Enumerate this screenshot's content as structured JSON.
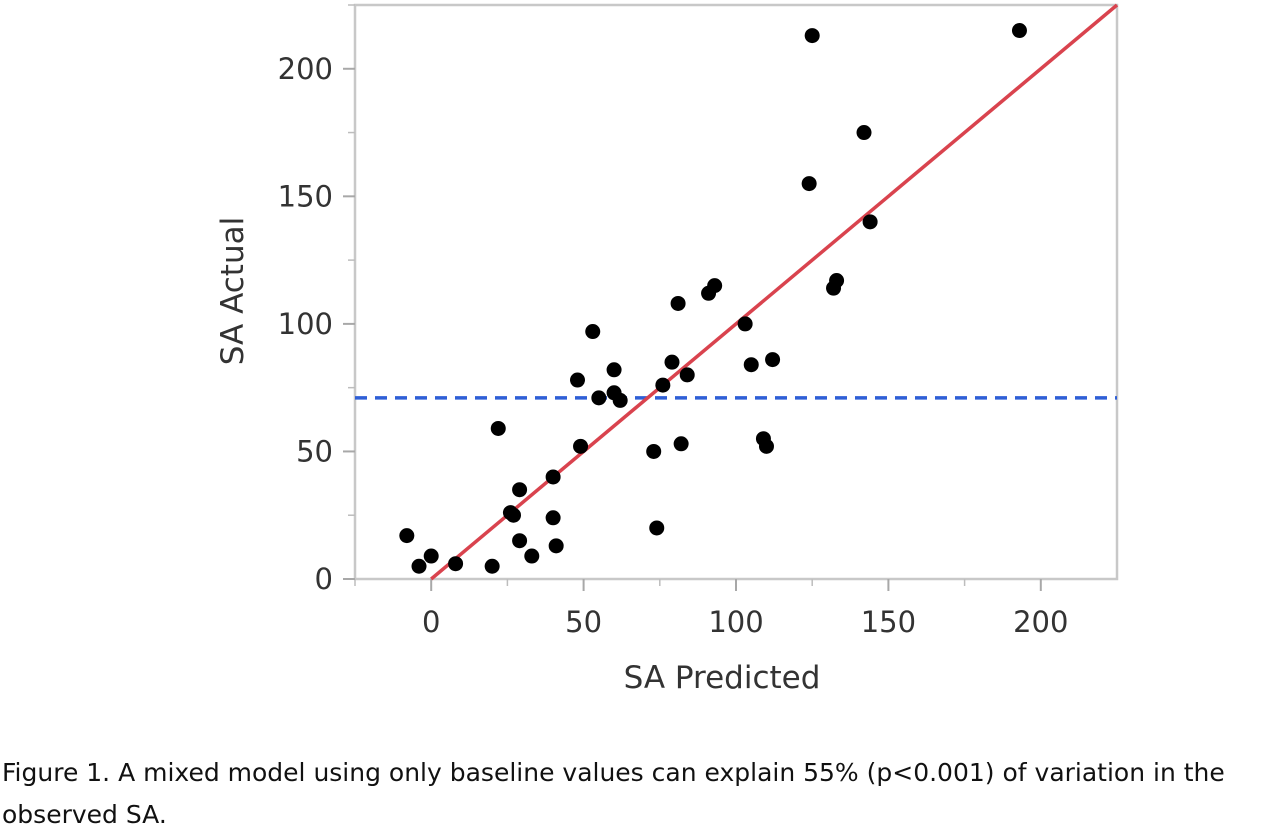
{
  "chart_data": {
    "type": "scatter",
    "title": "",
    "xlabel": "SA Predicted",
    "ylabel": "SA Actual",
    "xlim": [
      -25,
      225
    ],
    "ylim": [
      0,
      225
    ],
    "xticks": [
      0,
      50,
      100,
      150,
      200
    ],
    "yticks": [
      0,
      50,
      100,
      150,
      200
    ],
    "grid": false,
    "point_color": "#000000",
    "fit_line": {
      "from": [
        0,
        0
      ],
      "to": [
        225,
        225
      ],
      "color": "#d9434e"
    },
    "reference_line": {
      "y": 71,
      "color": "#2f5fd6",
      "dash": true
    },
    "points": [
      {
        "x": -8,
        "y": 17
      },
      {
        "x": -4,
        "y": 5
      },
      {
        "x": 0,
        "y": 9
      },
      {
        "x": 8,
        "y": 6
      },
      {
        "x": 20,
        "y": 5
      },
      {
        "x": 22,
        "y": 59
      },
      {
        "x": 26,
        "y": 26
      },
      {
        "x": 27,
        "y": 25
      },
      {
        "x": 29,
        "y": 15
      },
      {
        "x": 29,
        "y": 35
      },
      {
        "x": 33,
        "y": 9
      },
      {
        "x": 40,
        "y": 40
      },
      {
        "x": 40,
        "y": 24
      },
      {
        "x": 41,
        "y": 13
      },
      {
        "x": 48,
        "y": 78
      },
      {
        "x": 49,
        "y": 52
      },
      {
        "x": 53,
        "y": 97
      },
      {
        "x": 55,
        "y": 71
      },
      {
        "x": 60,
        "y": 73
      },
      {
        "x": 60,
        "y": 82
      },
      {
        "x": 62,
        "y": 70
      },
      {
        "x": 73,
        "y": 50
      },
      {
        "x": 74,
        "y": 20
      },
      {
        "x": 76,
        "y": 76
      },
      {
        "x": 79,
        "y": 85
      },
      {
        "x": 81,
        "y": 108
      },
      {
        "x": 82,
        "y": 53
      },
      {
        "x": 84,
        "y": 80
      },
      {
        "x": 91,
        "y": 112
      },
      {
        "x": 93,
        "y": 115
      },
      {
        "x": 103,
        "y": 100
      },
      {
        "x": 105,
        "y": 84
      },
      {
        "x": 109,
        "y": 55
      },
      {
        "x": 110,
        "y": 52
      },
      {
        "x": 112,
        "y": 86
      },
      {
        "x": 124,
        "y": 155
      },
      {
        "x": 125,
        "y": 213
      },
      {
        "x": 132,
        "y": 114
      },
      {
        "x": 133,
        "y": 117
      },
      {
        "x": 142,
        "y": 175
      },
      {
        "x": 144,
        "y": 140
      },
      {
        "x": 193,
        "y": 215
      }
    ]
  },
  "caption": {
    "text": "Figure 1. A mixed model using only baseline values can explain 55% (p<0.001) of variation in the observed SA."
  }
}
